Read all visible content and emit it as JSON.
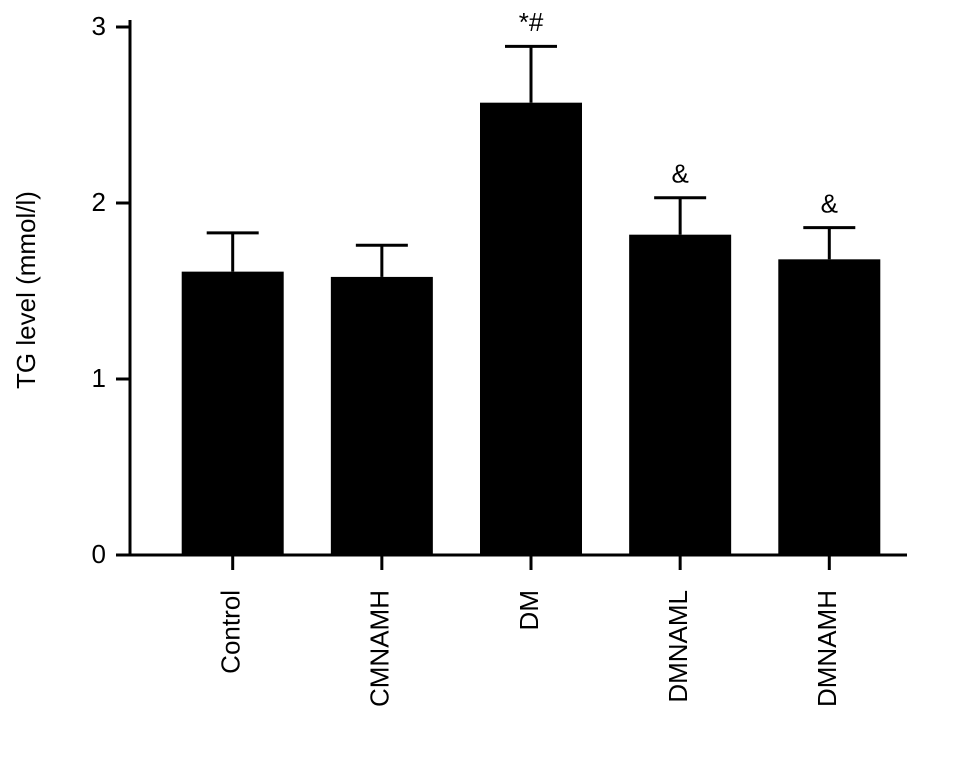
{
  "chart_data": {
    "type": "bar",
    "y_label": "TG level (mmol/l)",
    "categories": [
      "Control",
      "CMNAMH",
      "DM",
      "DMNAML",
      "DMNAMH"
    ],
    "values": [
      1.61,
      1.58,
      2.57,
      1.82,
      1.68
    ],
    "errors": [
      0.22,
      0.18,
      0.32,
      0.21,
      0.18
    ],
    "annotations": [
      null,
      null,
      "*#",
      "&",
      "&"
    ],
    "color": "#000000",
    "ylim": [
      0,
      3
    ],
    "yticks": [
      0,
      1,
      2,
      3
    ],
    "grid": false
  }
}
